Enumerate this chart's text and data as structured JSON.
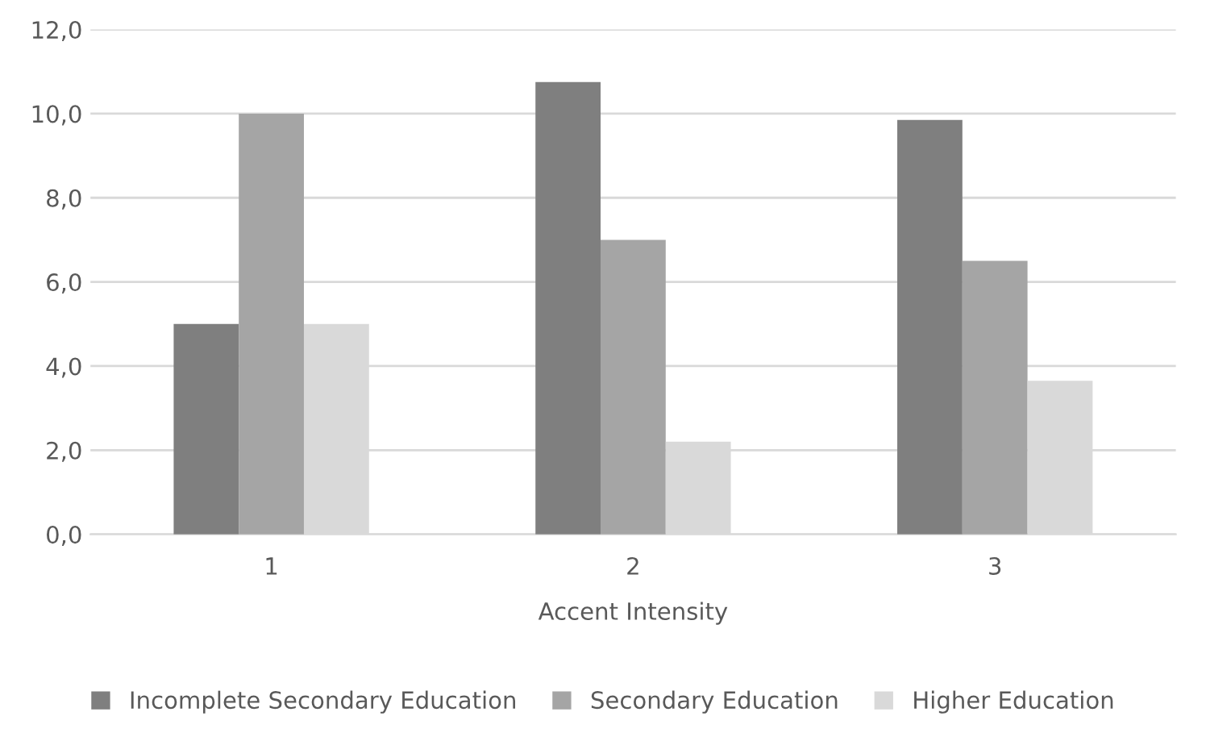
{
  "chart_data": {
    "type": "bar",
    "xlabel": "Accent Intensity",
    "categories": [
      "1",
      "2",
      "3"
    ],
    "series": [
      {
        "name": "Incomplete Secondary Education",
        "color": "#7f7f7f",
        "values": [
          5.0,
          10.75,
          9.85
        ]
      },
      {
        "name": "Secondary Education",
        "color": "#a5a5a5",
        "values": [
          10.0,
          7.0,
          6.5
        ]
      },
      {
        "name": "Higher Education",
        "color": "#d9d9d9",
        "values": [
          5.0,
          2.2,
          3.65
        ]
      }
    ],
    "ylim": [
      0,
      12
    ],
    "yticks": [
      {
        "value": 0,
        "label": "0,0"
      },
      {
        "value": 2,
        "label": "2,0"
      },
      {
        "value": 4,
        "label": "4,0"
      },
      {
        "value": 6,
        "label": "6,0"
      },
      {
        "value": 8,
        "label": "8,0"
      },
      {
        "value": 10,
        "label": "10,0"
      },
      {
        "value": 12,
        "label": "12,0"
      }
    ],
    "grid": "y",
    "legend": "bottom"
  }
}
